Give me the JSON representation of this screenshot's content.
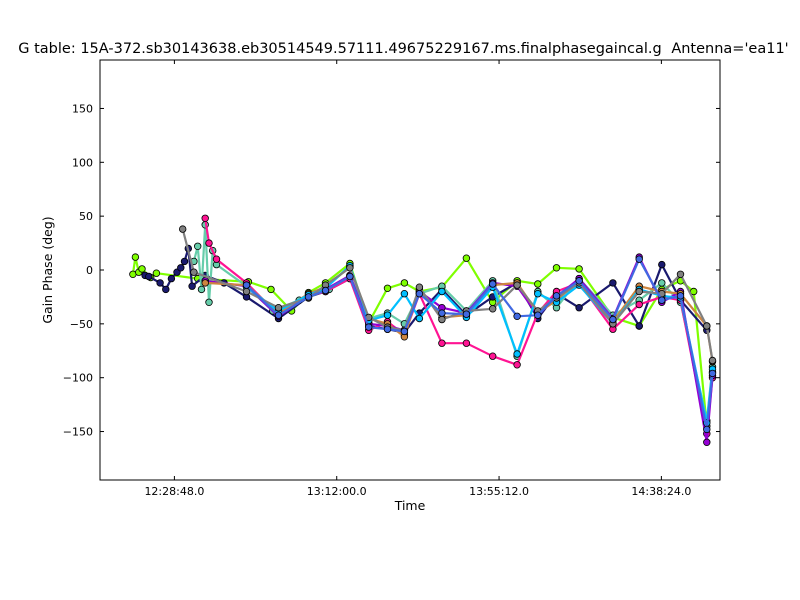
{
  "chart_data": {
    "type": "line",
    "title": "G table: 15A-372.sb30143638.eb30514549.57111.49675229167.ms.finalphasegaincal.g",
    "antenna_label": "Antenna='ea11'",
    "xlabel": "Time",
    "ylabel": "Gain Phase (deg)",
    "xlim": [
      "12:09:00",
      "14:54:00"
    ],
    "ylim": [
      -195,
      195
    ],
    "x_ticks": [
      "12:28:48.0",
      "13:12:00.0",
      "13:55:12.0",
      "14:38:24.0"
    ],
    "y_ticks": [
      -150,
      -100,
      -50,
      0,
      50,
      100,
      150
    ],
    "grid": false,
    "legend": "none",
    "marker": "circle",
    "series": [
      {
        "color": "#7fff00",
        "values": [
          [
            "12:17:45",
            -4
          ],
          [
            "12:18:25",
            12
          ],
          [
            "12:19:20",
            -2
          ],
          [
            "12:20:10",
            1
          ],
          [
            "12:22:30",
            -7
          ],
          [
            "12:24:00",
            -3
          ],
          [
            "12:35:00",
            -8
          ],
          [
            "12:48:30",
            -11
          ],
          [
            "12:54:30",
            -18
          ],
          [
            "13:00:00",
            -38
          ],
          [
            "13:04:30",
            -21
          ],
          [
            "13:09:00",
            -12
          ],
          [
            "13:15:30",
            6
          ],
          [
            "13:20:30",
            -49
          ],
          [
            "13:25:30",
            -17
          ],
          [
            "13:30:00",
            -12
          ],
          [
            "13:34:00",
            -20
          ],
          [
            "13:40:00",
            -16
          ],
          [
            "13:46:30",
            11
          ],
          [
            "13:53:30",
            -30
          ],
          [
            "14:00:00",
            -10
          ],
          [
            "14:05:30",
            -13
          ],
          [
            "14:10:30",
            2
          ],
          [
            "14:16:30",
            1
          ],
          [
            "14:25:30",
            -44
          ],
          [
            "14:32:30",
            -52
          ],
          [
            "14:38:30",
            -18
          ],
          [
            "14:43:30",
            -10
          ],
          [
            "14:47:00",
            -20
          ],
          [
            "14:50:30",
            -145
          ],
          [
            "14:52:00",
            -95
          ]
        ]
      },
      {
        "color": "#1a1a6e",
        "values": [
          [
            "12:21:00",
            -5
          ],
          [
            "12:22:00",
            -6
          ],
          [
            "12:25:00",
            -12
          ],
          [
            "12:26:30",
            -18
          ],
          [
            "12:28:00",
            -8
          ],
          [
            "12:29:30",
            -2
          ],
          [
            "12:30:30",
            2
          ],
          [
            "12:31:30",
            8
          ],
          [
            "12:32:30",
            20
          ],
          [
            "12:33:30",
            -15
          ],
          [
            "12:37:00",
            -5
          ],
          [
            "12:42:00",
            -12
          ],
          [
            "12:48:00",
            -25
          ],
          [
            "12:56:30",
            -45
          ],
          [
            "13:04:30",
            -25
          ],
          [
            "13:09:00",
            -20
          ],
          [
            "13:15:30",
            -8
          ],
          [
            "13:20:30",
            -52
          ],
          [
            "13:25:30",
            -55
          ],
          [
            "13:30:00",
            -58
          ],
          [
            "13:34:00",
            -40
          ],
          [
            "13:40:00",
            -18
          ],
          [
            "13:46:30",
            -42
          ],
          [
            "13:53:30",
            -25
          ],
          [
            "14:00:00",
            -12
          ],
          [
            "14:05:30",
            -45
          ],
          [
            "14:10:30",
            -22
          ],
          [
            "14:16:30",
            -35
          ],
          [
            "14:25:30",
            -12
          ],
          [
            "14:32:30",
            -52
          ],
          [
            "14:38:30",
            5
          ],
          [
            "14:43:30",
            -28
          ],
          [
            "14:50:30",
            -56
          ]
        ]
      },
      {
        "color": "#66cdaa",
        "values": [
          [
            "12:34:00",
            8
          ],
          [
            "12:35:00",
            22
          ],
          [
            "12:36:00",
            -18
          ],
          [
            "12:37:00",
            42
          ],
          [
            "12:38:00",
            -30
          ],
          [
            "12:39:00",
            18
          ],
          [
            "12:40:00",
            5
          ],
          [
            "12:48:00",
            -15
          ],
          [
            "12:55:00",
            -38
          ],
          [
            "13:02:00",
            -28
          ],
          [
            "13:10:00",
            -18
          ],
          [
            "13:15:30",
            -5
          ],
          [
            "13:20:30",
            -45
          ],
          [
            "13:25:30",
            -40
          ],
          [
            "13:30:00",
            -50
          ],
          [
            "13:34:00",
            -22
          ],
          [
            "13:40:00",
            -15
          ],
          [
            "13:46:30",
            -38
          ],
          [
            "13:53:30",
            -10
          ],
          [
            "14:00:00",
            -80
          ],
          [
            "14:05:30",
            -20
          ],
          [
            "14:10:30",
            -35
          ],
          [
            "14:16:30",
            -8
          ],
          [
            "14:25:30",
            -42
          ],
          [
            "14:32:30",
            -28
          ],
          [
            "14:38:30",
            -12
          ],
          [
            "14:43:30",
            -30
          ],
          [
            "14:50:30",
            -140
          ],
          [
            "14:52:00",
            -90
          ]
        ]
      },
      {
        "color": "#ff1493",
        "values": [
          [
            "12:37:00",
            48
          ],
          [
            "12:38:00",
            25
          ],
          [
            "12:40:00",
            10
          ],
          [
            "12:48:00",
            -12
          ],
          [
            "12:56:30",
            -42
          ],
          [
            "13:04:30",
            -24
          ],
          [
            "13:09:00",
            -20
          ],
          [
            "13:15:30",
            -8
          ],
          [
            "13:20:30",
            -56
          ],
          [
            "13:25:30",
            -48
          ],
          [
            "13:30:00",
            -60
          ],
          [
            "13:34:00",
            -22
          ],
          [
            "13:40:00",
            -68
          ],
          [
            "13:46:30",
            -68
          ],
          [
            "13:53:30",
            -80
          ],
          [
            "14:00:00",
            -88
          ],
          [
            "14:05:30",
            -40
          ],
          [
            "14:10:30",
            -20
          ],
          [
            "14:16:30",
            -12
          ],
          [
            "14:25:30",
            -55
          ],
          [
            "14:32:30",
            -32
          ],
          [
            "14:38:30",
            -25
          ],
          [
            "14:43:30",
            -28
          ],
          [
            "14:50:30",
            -152
          ],
          [
            "14:52:00",
            -100
          ]
        ]
      },
      {
        "color": "#9400d3",
        "values": [
          [
            "12:37:00",
            -10
          ],
          [
            "12:48:00",
            -15
          ],
          [
            "12:56:30",
            -43
          ],
          [
            "13:04:30",
            -24
          ],
          [
            "13:09:00",
            -18
          ],
          [
            "13:15:30",
            -5
          ],
          [
            "13:20:30",
            -50
          ],
          [
            "13:25:30",
            -52
          ],
          [
            "13:30:00",
            -56
          ],
          [
            "13:34:00",
            -20
          ],
          [
            "13:40:00",
            -35
          ],
          [
            "13:46:30",
            -40
          ],
          [
            "13:53:30",
            -12
          ],
          [
            "14:00:00",
            -15
          ],
          [
            "14:05:30",
            -42
          ],
          [
            "14:10:30",
            -25
          ],
          [
            "14:16:30",
            -8
          ],
          [
            "14:25:30",
            -45
          ],
          [
            "14:32:30",
            12
          ],
          [
            "14:38:30",
            -30
          ],
          [
            "14:43:30",
            -20
          ],
          [
            "14:50:30",
            -160
          ],
          [
            "14:52:00",
            -98
          ]
        ]
      },
      {
        "color": "#cd853f",
        "values": [
          [
            "12:37:00",
            -12
          ],
          [
            "12:48:00",
            -14
          ],
          [
            "12:56:30",
            -40
          ],
          [
            "13:04:30",
            -22
          ],
          [
            "13:09:00",
            -16
          ],
          [
            "13:15:30",
            3
          ],
          [
            "13:20:30",
            -45
          ],
          [
            "13:25:30",
            -50
          ],
          [
            "13:30:00",
            -62
          ],
          [
            "13:34:00",
            -18
          ],
          [
            "13:40:00",
            -44
          ],
          [
            "13:46:30",
            -42
          ],
          [
            "13:53:30",
            -14
          ],
          [
            "14:00:00",
            -12
          ],
          [
            "14:05:30",
            -40
          ],
          [
            "14:10:30",
            -28
          ],
          [
            "14:16:30",
            -10
          ],
          [
            "14:25:30",
            -48
          ],
          [
            "14:32:30",
            -15
          ],
          [
            "14:38:30",
            -20
          ],
          [
            "14:43:30",
            -22
          ],
          [
            "14:50:30",
            -52
          ],
          [
            "14:52:00",
            -85
          ]
        ]
      },
      {
        "color": "#00bfff",
        "values": [
          [
            "12:48:00",
            -16
          ],
          [
            "12:56:30",
            -38
          ],
          [
            "13:04:30",
            -23
          ],
          [
            "13:09:00",
            -17
          ],
          [
            "13:15:30",
            4
          ],
          [
            "13:20:30",
            -47
          ],
          [
            "13:25:30",
            -42
          ],
          [
            "13:30:00",
            -22
          ],
          [
            "13:34:00",
            -45
          ],
          [
            "13:40:00",
            -20
          ],
          [
            "13:46:30",
            -44
          ],
          [
            "13:53:30",
            -16
          ],
          [
            "14:00:00",
            -78
          ],
          [
            "14:05:30",
            -22
          ],
          [
            "14:10:30",
            -30
          ],
          [
            "14:16:30",
            -14
          ],
          [
            "14:25:30",
            -50
          ],
          [
            "14:32:30",
            -18
          ],
          [
            "14:38:30",
            -24
          ],
          [
            "14:43:30",
            -26
          ],
          [
            "14:50:30",
            -142
          ],
          [
            "14:52:00",
            -92
          ]
        ]
      },
      {
        "color": "#808080",
        "values": [
          [
            "12:31:00",
            38
          ],
          [
            "12:34:00",
            -2
          ],
          [
            "12:48:00",
            -20
          ],
          [
            "12:56:30",
            -35
          ],
          [
            "13:04:30",
            -26
          ],
          [
            "13:09:00",
            -14
          ],
          [
            "13:15:30",
            2
          ],
          [
            "13:20:30",
            -44
          ],
          [
            "13:25:30",
            -53
          ],
          [
            "13:30:00",
            -56
          ],
          [
            "13:34:00",
            -16
          ],
          [
            "13:40:00",
            -46
          ],
          [
            "13:46:30",
            -38
          ],
          [
            "13:53:30",
            -36
          ],
          [
            "14:00:00",
            -14
          ],
          [
            "14:05:30",
            -38
          ],
          [
            "14:10:30",
            -26
          ],
          [
            "14:16:30",
            -12
          ],
          [
            "14:25:30",
            -50
          ],
          [
            "14:32:30",
            -20
          ],
          [
            "14:38:30",
            -22
          ],
          [
            "14:43:30",
            -4
          ],
          [
            "14:50:30",
            -52
          ],
          [
            "14:52:00",
            -84
          ]
        ]
      },
      {
        "color": "#4169e1",
        "values": [
          [
            "12:48:00",
            -14
          ],
          [
            "12:56:30",
            -42
          ],
          [
            "13:04:30",
            -25
          ],
          [
            "13:09:00",
            -19
          ],
          [
            "13:15:30",
            -6
          ],
          [
            "13:20:30",
            -53
          ],
          [
            "13:25:30",
            -55
          ],
          [
            "13:30:00",
            -57
          ],
          [
            "13:34:00",
            -22
          ],
          [
            "13:40:00",
            -40
          ],
          [
            "13:46:30",
            -41
          ],
          [
            "13:53:30",
            -13
          ],
          [
            "14:00:00",
            -43
          ],
          [
            "14:05:30",
            -42
          ],
          [
            "14:10:30",
            -24
          ],
          [
            "14:16:30",
            -10
          ],
          [
            "14:25:30",
            -46
          ],
          [
            "14:32:30",
            10
          ],
          [
            "14:38:30",
            -28
          ],
          [
            "14:43:30",
            -24
          ],
          [
            "14:50:30",
            -148
          ],
          [
            "14:52:00",
            -96
          ]
        ]
      }
    ]
  }
}
